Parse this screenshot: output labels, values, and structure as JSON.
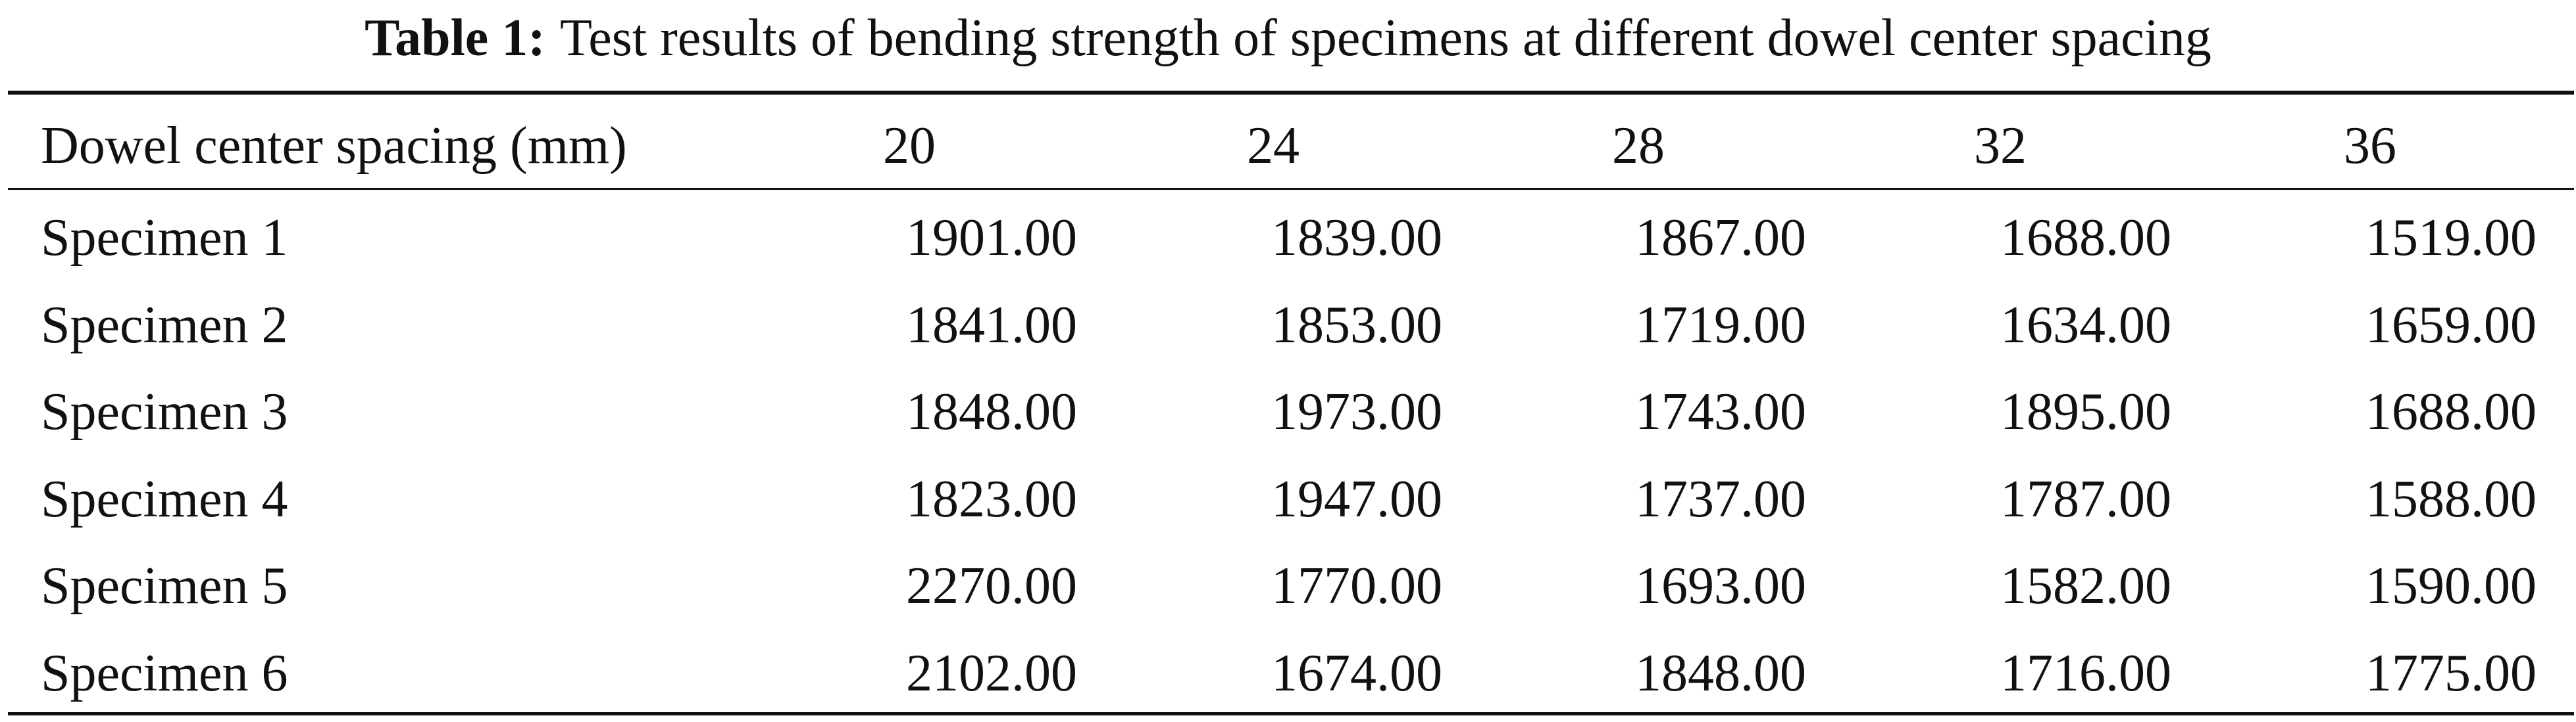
{
  "caption": {
    "label": "Table 1:",
    "text": "Test results of bending strength of specimens at different dowel center spacing"
  },
  "table": {
    "header": [
      "Dowel center spacing (mm)",
      "20",
      "24",
      "28",
      "32",
      "36"
    ],
    "rows": [
      [
        "Specimen 1",
        "1901.00",
        "1839.00",
        "1867.00",
        "1688.00",
        "1519.00"
      ],
      [
        "Specimen 2",
        "1841.00",
        "1853.00",
        "1719.00",
        "1634.00",
        "1659.00"
      ],
      [
        "Specimen 3",
        "1848.00",
        "1973.00",
        "1743.00",
        "1895.00",
        "1688.00"
      ],
      [
        "Specimen 4",
        "1823.00",
        "1947.00",
        "1737.00",
        "1787.00",
        "1588.00"
      ],
      [
        "Specimen 5",
        "2270.00",
        "1770.00",
        "1693.00",
        "1582.00",
        "1590.00"
      ],
      [
        "Specimen 6",
        "2102.00",
        "1674.00",
        "1848.00",
        "1716.00",
        "1775.00"
      ]
    ]
  }
}
